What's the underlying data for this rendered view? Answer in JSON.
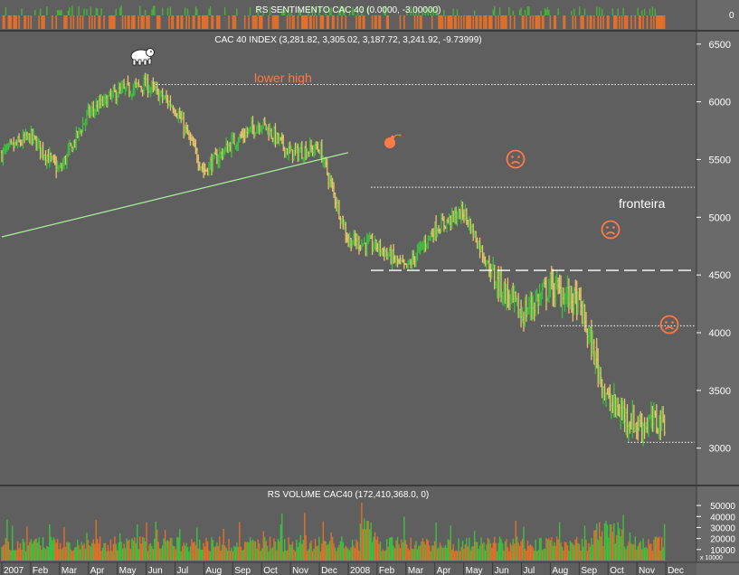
{
  "colors": {
    "background": "#5f5f5f",
    "axis_panel": "#6a6a6a",
    "up_bar": "#3ec13e",
    "down_bar": "#e8c46a",
    "sentiment_pos": "#4caf3a",
    "sentiment_neg": "#e0702a",
    "trendline": "#aef0a0",
    "reference_line": "#ffffff",
    "annotation": "#ff7a45",
    "text": "#ffffff"
  },
  "panels": {
    "sentiment": {
      "title": "RS SENTIMENTO CAC 40 (0.0000, -3.00000)",
      "axis_label": "0"
    },
    "price": {
      "title": "CAC 40 INDEX (3,281.82, 3,305.02, 3,187.72, 3,241.92, -9.73999)",
      "axis_ticks": [
        "6500",
        "6000",
        "5500",
        "5000",
        "4500",
        "4000",
        "3500",
        "3000"
      ]
    },
    "volume": {
      "title": "RS VOLUME CAC40 (172,410,368.0, 0)",
      "axis_ticks": [
        "50000",
        "40000",
        "30000",
        "20000",
        "10000"
      ],
      "multiplier": "x 10000"
    }
  },
  "annotations": {
    "lower_high": "lower high",
    "fronteira": "fronteira",
    "bear_icon": "bear-icon",
    "bomb_icon": "bomb-icon",
    "sad_face_icon": "sad-face-icon"
  },
  "x_axis": {
    "labels": [
      "2007",
      "Feb",
      "Mar",
      "Apr",
      "May",
      "Jun",
      "Jul",
      "Aug",
      "Sep",
      "Oct",
      "Nov",
      "Dec",
      "2008",
      "Feb",
      "Mar",
      "Apr",
      "May",
      "Jun",
      "Jul",
      "Aug",
      "Sep",
      "Oct",
      "Nov",
      "Dec"
    ]
  },
  "chart_data": {
    "type": "ohlc",
    "title": "CAC 40 INDEX (3,281.82, 3,305.02, 3,187.72, 3,241.92, -9.73999)",
    "x_range": [
      "2007-01",
      "2008-12"
    ],
    "ylim": [
      2700,
      6600
    ],
    "last_bar": {
      "open": 3281.82,
      "high": 3305.02,
      "low": 3187.72,
      "close": 3241.92,
      "change": -9.73999
    },
    "price_path": [
      {
        "x": "2007-01",
        "y": 5550
      },
      {
        "x": "2007-02",
        "y": 5700
      },
      {
        "x": "2007-03",
        "y": 5400
      },
      {
        "x": "2007-04",
        "y": 5900
      },
      {
        "x": "2007-05",
        "y": 6080
      },
      {
        "x": "2007-06",
        "y": 6150
      },
      {
        "x": "2007-07",
        "y": 5950
      },
      {
        "x": "2007-08",
        "y": 5400
      },
      {
        "x": "2007-09",
        "y": 5650
      },
      {
        "x": "2007-10",
        "y": 5820
      },
      {
        "x": "2007-11",
        "y": 5550
      },
      {
        "x": "2007-12",
        "y": 5600
      },
      {
        "x": "2008-01",
        "y": 4800
      },
      {
        "x": "2008-02",
        "y": 4750
      },
      {
        "x": "2008-03",
        "y": 4550
      },
      {
        "x": "2008-04",
        "y": 4900
      },
      {
        "x": "2008-05",
        "y": 5050
      },
      {
        "x": "2008-06",
        "y": 4500
      },
      {
        "x": "2008-07",
        "y": 4150
      },
      {
        "x": "2008-08",
        "y": 4400
      },
      {
        "x": "2008-09",
        "y": 4250
      },
      {
        "x": "2008-10",
        "y": 3400
      },
      {
        "x": "2008-11",
        "y": 3200
      },
      {
        "x": "2008-12",
        "y": 3240
      }
    ],
    "reference_levels": [
      {
        "y": 6150,
        "style": "dotted"
      },
      {
        "y": 5260,
        "style": "dotted"
      },
      {
        "y": 4540,
        "style": "dashed",
        "label": "fronteira"
      },
      {
        "y": 4060,
        "style": "dotted"
      },
      {
        "y": 3050,
        "style": "dotted"
      }
    ],
    "trendline": [
      {
        "x": "2007-01",
        "y": 4830
      },
      {
        "x": "2007-12",
        "y": 5560
      }
    ],
    "volume_range": [
      0,
      55000
    ],
    "sentiment_values": [
      0,
      -3
    ]
  }
}
